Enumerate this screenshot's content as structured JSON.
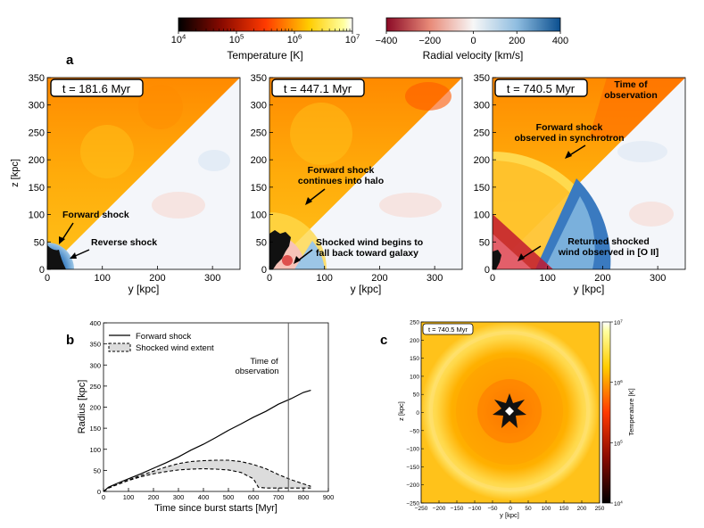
{
  "colorbars": {
    "temperature": {
      "label": "Temperature [K]",
      "ticks": [
        "10",
        "10",
        "10",
        "10"
      ],
      "tick_exponents": [
        "4",
        "5",
        "6",
        "7"
      ]
    },
    "velocity": {
      "label": "Radial velocity [km/s]",
      "ticks": [
        "−400",
        "−200",
        "0",
        "200",
        "400"
      ]
    }
  },
  "panel_a": {
    "letter": "a",
    "ylabel": "z [kpc]",
    "xlabel": "y [kpc]",
    "yticks": [
      "0",
      "50",
      "100",
      "150",
      "200",
      "250",
      "300",
      "350"
    ],
    "xticks": [
      "0",
      "100",
      "200",
      "300"
    ],
    "subpanels": [
      {
        "time_label": "t = 181.6 Myr",
        "annotations": [
          "Forward shock",
          "Reverse shock"
        ]
      },
      {
        "time_label": "t = 447.1 Myr",
        "annotations": [
          "Forward shock",
          "continues into halo",
          "Shocked wind begins to",
          "fall back toward galaxy"
        ]
      },
      {
        "time_label": "t = 740.5 Myr",
        "annotations": [
          "Time of",
          "observation",
          "Forward shock",
          "observed in synchrotron",
          "Returned shocked",
          "wind observed in [O II]"
        ]
      }
    ]
  },
  "panel_b": {
    "letter": "b",
    "legend": [
      "Forward shock",
      "Shocked wind extent"
    ],
    "obs_label": [
      "Time of",
      "observation"
    ],
    "chart_data": {
      "type": "line",
      "xlabel": "Time since burst starts [Myr]",
      "ylabel": "Radius [kpc]",
      "xlim": [
        0,
        900
      ],
      "ylim": [
        0,
        400
      ],
      "xticks": [
        "0",
        "100",
        "200",
        "300",
        "400",
        "500",
        "600",
        "700",
        "800",
        "900"
      ],
      "yticks": [
        "0",
        "50",
        "100",
        "150",
        "200",
        "250",
        "300",
        "350",
        "400"
      ],
      "observation_time": 740,
      "series": [
        {
          "name": "Forward shock",
          "x": [
            0,
            20,
            50,
            100,
            150,
            200,
            250,
            300,
            350,
            400,
            450,
            500,
            550,
            600,
            650,
            700,
            750,
            800,
            830
          ],
          "y": [
            0,
            10,
            18,
            30,
            42,
            55,
            68,
            82,
            98,
            112,
            128,
            145,
            160,
            176,
            190,
            207,
            220,
            235,
            240
          ]
        },
        {
          "name": "Shocked wind extent (outer)",
          "x": [
            0,
            20,
            50,
            100,
            150,
            200,
            250,
            300,
            350,
            400,
            450,
            500,
            550,
            600,
            650,
            700,
            750,
            800,
            830
          ],
          "y": [
            0,
            8,
            15,
            27,
            38,
            48,
            58,
            66,
            71,
            73,
            74,
            74,
            71,
            64,
            54,
            40,
            28,
            18,
            12
          ]
        },
        {
          "name": "Shocked wind extent (inner)",
          "x": [
            0,
            20,
            50,
            100,
            150,
            200,
            250,
            300,
            350,
            400,
            450,
            500,
            550,
            600,
            620,
            650,
            700,
            750,
            800,
            830
          ],
          "y": [
            0,
            8,
            15,
            26,
            35,
            42,
            47,
            51,
            53,
            54,
            53,
            51,
            45,
            30,
            10,
            8,
            8,
            8,
            8,
            8
          ]
        }
      ]
    }
  },
  "panel_c": {
    "letter": "c",
    "time_label": "t = 740.5 Myr",
    "xlabel": "y [kpc]",
    "ylabel": "z [kpc]",
    "colorbar_label": "Temperature [K]",
    "colorbar_ticks": [
      "10",
      "10",
      "10",
      "10"
    ],
    "colorbar_exponents": [
      "7",
      "6",
      "5",
      "4"
    ],
    "xticks": [
      "−250",
      "−200",
      "−150",
      "−100",
      "−50",
      "0",
      "50",
      "100",
      "150",
      "200",
      "250"
    ],
    "yticks": [
      "250",
      "200",
      "150",
      "100",
      "50",
      "0",
      "−50",
      "−100",
      "−150",
      "−200",
      "−250"
    ]
  }
}
